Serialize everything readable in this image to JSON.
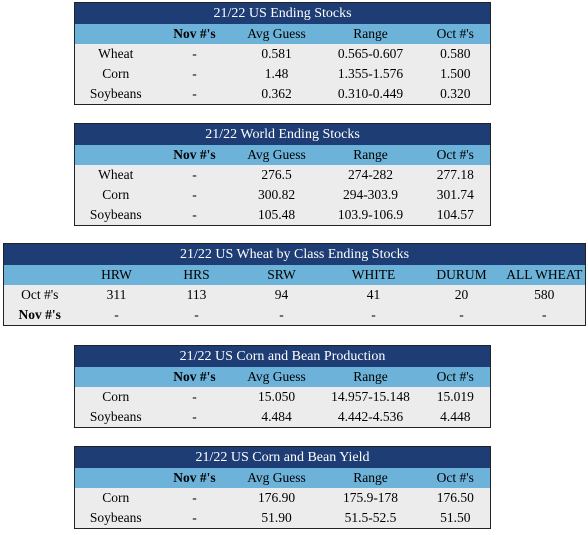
{
  "us_ending_stocks": {
    "title": "21/22 US Ending Stocks",
    "headers": [
      "",
      "Nov #'s",
      "Avg Guess",
      "Range",
      "Oct #'s"
    ],
    "rows": [
      [
        "Wheat",
        "-",
        "0.581",
        "0.565-0.607",
        "0.580"
      ],
      [
        "Corn",
        "-",
        "1.48",
        "1.355-1.576",
        "1.500"
      ],
      [
        "Soybeans",
        "-",
        "0.362",
        "0.310-0.449",
        "0.320"
      ]
    ]
  },
  "world_ending_stocks": {
    "title": "21/22 World Ending Stocks",
    "headers": [
      "",
      "Nov #'s",
      "Avg Guess",
      "Range",
      "Oct #'s"
    ],
    "rows": [
      [
        "Wheat",
        "-",
        "276.5",
        "274-282",
        "277.18"
      ],
      [
        "Corn",
        "-",
        "300.82",
        "294-303.9",
        "301.74"
      ],
      [
        "Soybeans",
        "-",
        "105.48",
        "103.9-106.9",
        "104.57"
      ]
    ]
  },
  "wheat_by_class": {
    "title": "21/22 US Wheat by Class Ending Stocks",
    "headers": [
      "",
      "HRW",
      "HRS",
      "SRW",
      "WHITE",
      "DURUM",
      "ALL WHEAT"
    ],
    "rows": [
      [
        "Oct #'s",
        "311",
        "113",
        "94",
        "41",
        "20",
        "580"
      ],
      [
        "Nov #'s",
        "-",
        "-",
        "-",
        "-",
        "-",
        "-"
      ]
    ]
  },
  "corn_bean_production": {
    "title": "21/22 US Corn and Bean Production",
    "headers": [
      "",
      "Nov #'s",
      "Avg Guess",
      "Range",
      "Oct #'s"
    ],
    "rows": [
      [
        "Corn",
        "-",
        "15.050",
        "14.957-15.148",
        "15.019"
      ],
      [
        "Soybeans",
        "-",
        "4.484",
        "4.442-4.536",
        "4.448"
      ]
    ]
  },
  "corn_bean_yield": {
    "title": "21/22 US Corn and Bean Yield",
    "headers": [
      "",
      "Nov #'s",
      "Avg Guess",
      "Range",
      "Oct #'s"
    ],
    "rows": [
      [
        "Corn",
        "-",
        "176.90",
        "175.9-178",
        "176.50"
      ],
      [
        "Soybeans",
        "-",
        "51.90",
        "51.5-52.5",
        "51.50"
      ]
    ]
  }
}
